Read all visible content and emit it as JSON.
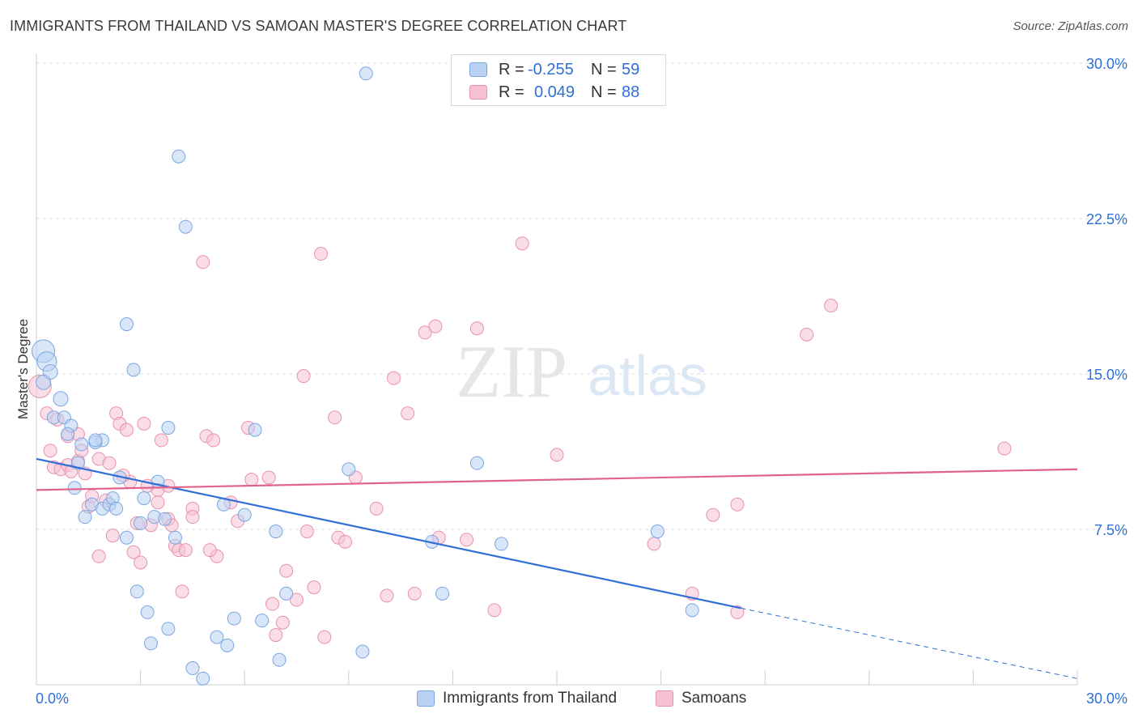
{
  "title": "IMMIGRANTS FROM THAILAND VS SAMOAN MASTER'S DEGREE CORRELATION CHART",
  "source": "Source: ZipAtlas.com",
  "watermark": {
    "zip": "ZIP",
    "atlas": "atlas"
  },
  "legend": {
    "rows": [
      {
        "r_label": "R =",
        "r_value": "-0.255",
        "n_label": "N =",
        "n_value": "59"
      },
      {
        "r_label": "R =",
        "r_value": "0.049",
        "n_label": "N =",
        "n_value": "88"
      }
    ]
  },
  "bottom_legend": [
    "Immigrants from Thailand",
    "Samoans"
  ],
  "colors": {
    "blue_fill": "#b9d1f2",
    "blue_stroke": "#7aa6e0",
    "blue_line": "#2f6fd6",
    "pink_fill": "#f6c1d2",
    "pink_stroke": "#e892ae",
    "pink_line": "#e0628c",
    "axis_text_blue": "#2f6fd6",
    "grid": "#dddddd"
  },
  "chart_data": {
    "type": "scatter",
    "title": "IMMIGRANTS FROM THAILAND VS SAMOAN MASTER'S DEGREE CORRELATION CHART",
    "xlabel": "",
    "ylabel": "Master's Degree",
    "xlim": [
      0,
      30
    ],
    "ylim": [
      0,
      30
    ],
    "x_tick_labels": [
      "0.0%",
      "30.0%"
    ],
    "y_tick_labels": [
      "7.5%",
      "15.0%",
      "22.5%",
      "30.0%"
    ],
    "y_ticks": [
      7.5,
      15.0,
      22.5,
      30.0
    ],
    "series": [
      {
        "name": "Immigrants from Thailand",
        "r": -0.255,
        "n": 59,
        "trend": {
          "x0": 0,
          "y0": 10.9,
          "x1": 20.3,
          "y1": 3.7,
          "dash_to_x": 30,
          "dash_to_y": 0.3
        },
        "points": [
          [
            0.2,
            16.1,
            14
          ],
          [
            0.3,
            15.6,
            12
          ],
          [
            0.4,
            15.1,
            9
          ],
          [
            0.2,
            14.6,
            9
          ],
          [
            0.7,
            13.8,
            9
          ],
          [
            0.5,
            12.9,
            8
          ],
          [
            0.8,
            12.9,
            8
          ],
          [
            1.0,
            12.5,
            8
          ],
          [
            0.9,
            12.1,
            8
          ],
          [
            1.3,
            11.6,
            8
          ],
          [
            1.9,
            11.8,
            8
          ],
          [
            1.7,
            11.7,
            8
          ],
          [
            1.2,
            10.7,
            8
          ],
          [
            1.1,
            9.5,
            8
          ],
          [
            2.4,
            10.0,
            8
          ],
          [
            2.6,
            17.4,
            8
          ],
          [
            2.8,
            15.2,
            8
          ],
          [
            3.8,
            12.4,
            8
          ],
          [
            4.1,
            25.5,
            8
          ],
          [
            4.3,
            22.1,
            8
          ],
          [
            3.5,
            9.8,
            8
          ],
          [
            1.6,
            8.7,
            8
          ],
          [
            1.9,
            8.5,
            8
          ],
          [
            1.4,
            8.1,
            8
          ],
          [
            2.1,
            8.7,
            8
          ],
          [
            2.2,
            9.0,
            8
          ],
          [
            2.3,
            8.5,
            8
          ],
          [
            3.1,
            9.0,
            8
          ],
          [
            3.0,
            7.8,
            8
          ],
          [
            3.4,
            8.1,
            8
          ],
          [
            3.7,
            8.0,
            8
          ],
          [
            4.0,
            7.1,
            8
          ],
          [
            2.6,
            7.1,
            8
          ],
          [
            5.4,
            8.7,
            8
          ],
          [
            6.0,
            8.2,
            8
          ],
          [
            6.3,
            12.3,
            8
          ],
          [
            9.0,
            10.4,
            8
          ],
          [
            9.5,
            29.5,
            8
          ],
          [
            6.9,
            7.4,
            8
          ],
          [
            7.2,
            4.4,
            8
          ],
          [
            2.9,
            4.5,
            8
          ],
          [
            3.2,
            3.5,
            8
          ],
          [
            3.8,
            2.7,
            8
          ],
          [
            3.3,
            2.0,
            8
          ],
          [
            5.2,
            2.3,
            8
          ],
          [
            5.5,
            1.9,
            8
          ],
          [
            5.7,
            3.2,
            8
          ],
          [
            6.5,
            3.1,
            8
          ],
          [
            7.0,
            1.2,
            8
          ],
          [
            4.5,
            0.8,
            8
          ],
          [
            4.8,
            0.3,
            8
          ],
          [
            9.4,
            1.6,
            8
          ],
          [
            11.4,
            6.9,
            8
          ],
          [
            11.7,
            4.4,
            8
          ],
          [
            12.7,
            10.7,
            8
          ],
          [
            13.4,
            6.8,
            8
          ],
          [
            17.9,
            7.4,
            8
          ],
          [
            18.9,
            3.6,
            8
          ],
          [
            1.7,
            11.8,
            8
          ]
        ]
      },
      {
        "name": "Samoans",
        "r": 0.049,
        "n": 88,
        "trend": {
          "x0": 0,
          "y0": 9.4,
          "x1": 30,
          "y1": 10.4
        },
        "points": [
          [
            0.1,
            14.4,
            14
          ],
          [
            0.3,
            13.1,
            8
          ],
          [
            0.4,
            11.3,
            8
          ],
          [
            0.5,
            10.5,
            8
          ],
          [
            0.7,
            10.4,
            8
          ],
          [
            0.9,
            10.6,
            8
          ],
          [
            0.9,
            12.0,
            8
          ],
          [
            1.0,
            10.3,
            8
          ],
          [
            1.2,
            12.1,
            8
          ],
          [
            1.2,
            10.8,
            8
          ],
          [
            1.3,
            11.3,
            8
          ],
          [
            1.5,
            8.6,
            8
          ],
          [
            1.6,
            9.1,
            8
          ],
          [
            1.8,
            10.9,
            8
          ],
          [
            1.8,
            6.2,
            8
          ],
          [
            2.0,
            8.9,
            8
          ],
          [
            2.1,
            10.7,
            8
          ],
          [
            2.2,
            7.2,
            8
          ],
          [
            2.3,
            13.1,
            8
          ],
          [
            2.4,
            12.6,
            8
          ],
          [
            2.6,
            12.3,
            8
          ],
          [
            2.7,
            9.8,
            8
          ],
          [
            2.8,
            6.4,
            8
          ],
          [
            2.9,
            7.8,
            8
          ],
          [
            3.0,
            5.9,
            8
          ],
          [
            3.1,
            12.6,
            8
          ],
          [
            3.2,
            9.6,
            8
          ],
          [
            3.3,
            7.7,
            8
          ],
          [
            3.5,
            9.4,
            8
          ],
          [
            3.6,
            11.8,
            8
          ],
          [
            3.5,
            8.8,
            8
          ],
          [
            3.8,
            8.0,
            8
          ],
          [
            3.9,
            7.7,
            8
          ],
          [
            4.0,
            6.7,
            8
          ],
          [
            4.1,
            6.5,
            8
          ],
          [
            4.2,
            4.5,
            8
          ],
          [
            4.3,
            6.5,
            8
          ],
          [
            4.5,
            8.5,
            8
          ],
          [
            4.5,
            8.1,
            8
          ],
          [
            4.8,
            20.4,
            8
          ],
          [
            4.9,
            12.0,
            8
          ],
          [
            5.1,
            11.8,
            8
          ],
          [
            5.2,
            6.2,
            8
          ],
          [
            5.6,
            8.8,
            8
          ],
          [
            5.8,
            7.9,
            8
          ],
          [
            6.1,
            12.4,
            8
          ],
          [
            6.2,
            9.9,
            8
          ],
          [
            6.7,
            10.0,
            8
          ],
          [
            6.8,
            3.9,
            8
          ],
          [
            6.9,
            2.4,
            8
          ],
          [
            7.1,
            3.0,
            8
          ],
          [
            7.2,
            5.5,
            8
          ],
          [
            7.5,
            4.1,
            8
          ],
          [
            7.7,
            14.9,
            8
          ],
          [
            7.8,
            7.4,
            8
          ],
          [
            8.0,
            4.7,
            8
          ],
          [
            8.3,
            2.3,
            8
          ],
          [
            8.2,
            20.8,
            8
          ],
          [
            8.6,
            12.9,
            8
          ],
          [
            8.7,
            7.1,
            8
          ],
          [
            8.9,
            6.9,
            8
          ],
          [
            9.2,
            10.0,
            8
          ],
          [
            9.8,
            8.5,
            8
          ],
          [
            10.1,
            4.3,
            8
          ],
          [
            10.3,
            14.8,
            8
          ],
          [
            10.7,
            13.1,
            8
          ],
          [
            10.9,
            4.4,
            8
          ],
          [
            11.2,
            17.0,
            8
          ],
          [
            11.5,
            17.3,
            8
          ],
          [
            11.6,
            7.1,
            8
          ],
          [
            12.4,
            7.0,
            8
          ],
          [
            12.7,
            17.2,
            8
          ],
          [
            13.2,
            3.6,
            8
          ],
          [
            14.0,
            21.3,
            8
          ],
          [
            15.0,
            11.1,
            8
          ],
          [
            17.8,
            6.8,
            8
          ],
          [
            18.9,
            4.4,
            8
          ],
          [
            19.5,
            8.2,
            8
          ],
          [
            20.2,
            3.5,
            8
          ],
          [
            20.2,
            8.7,
            8
          ],
          [
            22.2,
            16.9,
            8
          ],
          [
            22.9,
            18.3,
            8
          ],
          [
            27.9,
            11.4,
            8
          ],
          [
            5.0,
            6.5,
            8
          ],
          [
            3.8,
            9.6,
            8
          ],
          [
            2.5,
            10.1,
            8
          ],
          [
            1.4,
            10.2,
            8
          ],
          [
            0.6,
            12.8,
            8
          ]
        ]
      }
    ]
  }
}
